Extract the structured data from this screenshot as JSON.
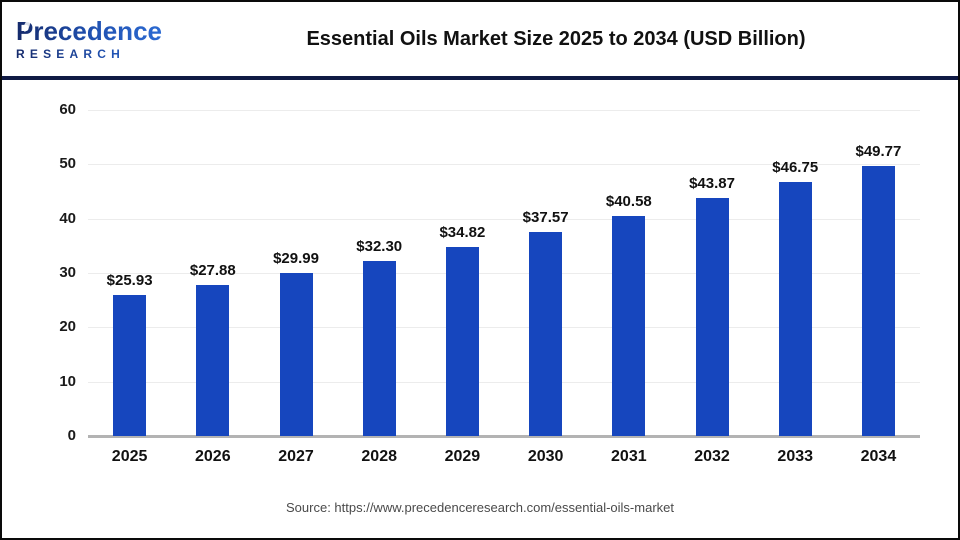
{
  "header": {
    "logo": {
      "brand_top": "Precedence",
      "brand_bottom": "RESEARCH"
    },
    "title": "Essential Oils Market Size 2025 to 2034 (USD Billion)"
  },
  "chart_data": {
    "type": "bar",
    "title": "Essential Oils Market Size 2025 to 2034 (USD Billion)",
    "categories": [
      "2025",
      "2026",
      "2027",
      "2028",
      "2029",
      "2030",
      "2031",
      "2032",
      "2033",
      "2034"
    ],
    "values": [
      25.93,
      27.88,
      29.99,
      32.3,
      34.82,
      37.57,
      40.58,
      43.87,
      46.75,
      49.77
    ],
    "value_labels": [
      "$25.93",
      "$27.88",
      "$29.99",
      "$32.30",
      "$34.82",
      "$37.57",
      "$40.58",
      "$43.87",
      "$46.75",
      "$49.77"
    ],
    "ylim": [
      0,
      60
    ],
    "yticks": [
      0,
      10,
      20,
      30,
      40,
      50,
      60
    ],
    "xlabel": "",
    "ylabel": "",
    "grid": true,
    "legend": false
  },
  "footer": {
    "source": "Source: https://www.precedenceresearch.com/essential-oils-market"
  },
  "colors": {
    "bar": "#1646BE",
    "divider": "#101A44",
    "gridline": "#ECECEC",
    "baseline": "#B3B3B3",
    "logo_navy": "#152A6B",
    "logo_blue": "#2E6FD9",
    "text": "#111111",
    "source_text": "#4A4A4A"
  }
}
